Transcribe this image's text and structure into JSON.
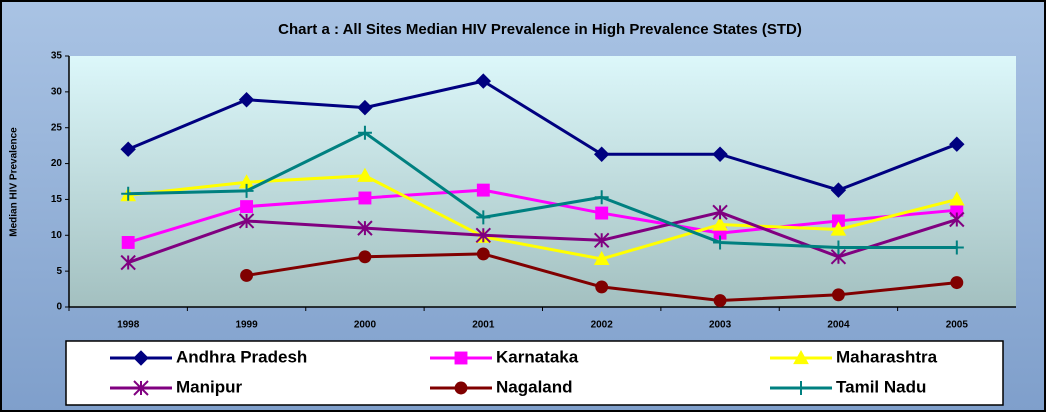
{
  "chart_data": {
    "type": "line",
    "title": "Chart a : All Sites Median HIV Prevalence in High Prevalence States (STD)",
    "y_label": "Median HIV Prevalence",
    "categories": [
      "1998",
      "1999",
      "2000",
      "2001",
      "2002",
      "2003",
      "2004",
      "2005"
    ],
    "ylim": [
      0,
      35
    ],
    "yticks": [
      0,
      5,
      10,
      15,
      20,
      25,
      30,
      35
    ],
    "series": [
      {
        "name": "Andhra Pradesh",
        "color": "#000080",
        "marker": "diamond",
        "values": [
          22,
          28.9,
          27.8,
          31.5,
          21.3,
          21.3,
          16.3,
          22.7
        ]
      },
      {
        "name": "Karnataka",
        "color": "#ff00ff",
        "marker": "square",
        "values": [
          9,
          14,
          15.2,
          16.3,
          13.1,
          10.3,
          12,
          13.5
        ]
      },
      {
        "name": "Maharashtra",
        "color": "#ffff00",
        "marker": "triangle",
        "values": [
          15.6,
          17.4,
          18.3,
          9.8,
          6.7,
          11.5,
          10.8,
          15
        ]
      },
      {
        "name": "Manipur",
        "color": "#800080",
        "marker": "star",
        "values": [
          6.2,
          12,
          11,
          10,
          9.3,
          13.2,
          7,
          12.2
        ]
      },
      {
        "name": "Nagaland",
        "color": "#800000",
        "marker": "circle",
        "values": [
          null,
          4.4,
          7,
          7.4,
          2.8,
          0.9,
          1.7,
          3.4
        ]
      },
      {
        "name": "Tamil Nadu",
        "color": "#008080",
        "marker": "plus",
        "values": [
          15.8,
          16.2,
          24.3,
          12.5,
          15.3,
          9,
          8.3,
          8.3
        ]
      }
    ]
  }
}
